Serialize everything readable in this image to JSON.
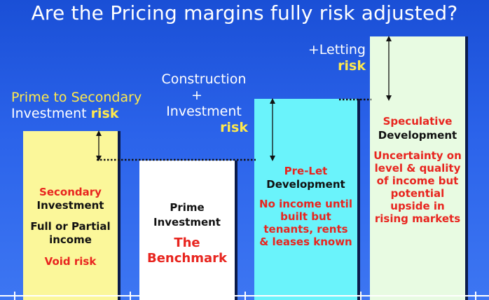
{
  "title": "Are the Pricing margins fully risk adjusted?",
  "labels": {
    "prime_secondary": {
      "line1": "Prime to Secondary",
      "line2": "Investment",
      "risk": "risk"
    },
    "construction": {
      "line1": "Construction",
      "plus": "+",
      "line2": "Investment",
      "risk": "risk"
    },
    "letting": {
      "line1": "+Letting",
      "risk": "risk"
    }
  },
  "columns": [
    {
      "title1": "Secondary",
      "title2": "Investment",
      "text1": "Full or Partial",
      "text2": "income",
      "text3": "Void risk"
    },
    {
      "title1": "Prime",
      "title2": "Investment",
      "text1": "The",
      "text2": "Benchmark"
    },
    {
      "title1": "Pre-Let",
      "title2": "Development",
      "text1": "No income until",
      "text2": "built but",
      "text3": "tenants, rents",
      "text4": "& leases known"
    },
    {
      "title1": "Speculative",
      "title2": "Development",
      "text1": "Uncertainty on",
      "text2": "level & quality",
      "text3": "of income but",
      "text4": "potential",
      "text5": "upside in",
      "text6": "rising markets"
    }
  ],
  "colors": {
    "yellow_col": "#fbf79a",
    "white_col": "#ffffff",
    "cyan_col": "#6af3fb",
    "mint_col": "#e8fbe2",
    "red_text": "#e8251f",
    "risk_text": "#ffe94d"
  }
}
